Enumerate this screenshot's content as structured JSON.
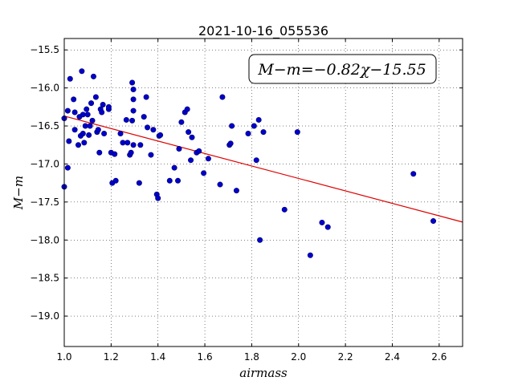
{
  "chart_data": {
    "type": "scatter",
    "title": "2021-10-16_055536",
    "xlabel": "airmass",
    "ylabel": "M−m",
    "xlim": [
      1.0,
      2.7
    ],
    "ylim": [
      -19.4,
      -15.35
    ],
    "y_inverted": true,
    "grid": true,
    "x_ticks": [
      1.0,
      1.2,
      1.4,
      1.6,
      1.8,
      2.0,
      2.2,
      2.4,
      2.6
    ],
    "x_tick_labels": [
      "1.0",
      "1.2",
      "1.4",
      "1.6",
      "1.8",
      "2.0",
      "2.2",
      "2.4",
      "2.6"
    ],
    "y_ticks": [
      -15.5,
      -16.0,
      -16.5,
      -17.0,
      -17.5,
      -18.0,
      -18.5,
      -19.0
    ],
    "y_tick_labels": [
      "−15.5",
      "−16.0",
      "−16.5",
      "−17.0",
      "−17.5",
      "−18.0",
      "−18.5",
      "−19.0"
    ],
    "annotation": "M−m=−0.82χ−15.55",
    "point_color": "#0000cc",
    "line_color": "#dd0000",
    "fit": {
      "slope": -0.82,
      "intercept": -15.55
    },
    "points": [
      [
        1.0,
        -16.4
      ],
      [
        1.0,
        -17.3
      ],
      [
        1.015,
        -17.05
      ],
      [
        1.015,
        -16.3
      ],
      [
        1.02,
        -16.7
      ],
      [
        1.025,
        -15.88
      ],
      [
        1.04,
        -16.15
      ],
      [
        1.045,
        -16.32
      ],
      [
        1.045,
        -16.55
      ],
      [
        1.06,
        -16.75
      ],
      [
        1.065,
        -16.38
      ],
      [
        1.07,
        -16.63
      ],
      [
        1.075,
        -15.78
      ],
      [
        1.08,
        -16.6
      ],
      [
        1.08,
        -16.35
      ],
      [
        1.085,
        -16.72
      ],
      [
        1.09,
        -16.5
      ],
      [
        1.095,
        -16.28
      ],
      [
        1.1,
        -16.35
      ],
      [
        1.105,
        -16.62
      ],
      [
        1.11,
        -16.5
      ],
      [
        1.115,
        -16.2
      ],
      [
        1.12,
        -16.43
      ],
      [
        1.125,
        -15.85
      ],
      [
        1.135,
        -16.12
      ],
      [
        1.14,
        -16.58
      ],
      [
        1.145,
        -16.55
      ],
      [
        1.15,
        -16.85
      ],
      [
        1.155,
        -16.28
      ],
      [
        1.16,
        -16.32
      ],
      [
        1.165,
        -16.22
      ],
      [
        1.17,
        -16.6
      ],
      [
        1.19,
        -16.28
      ],
      [
        1.19,
        -16.25
      ],
      [
        1.2,
        -16.85
      ],
      [
        1.205,
        -17.25
      ],
      [
        1.215,
        -16.87
      ],
      [
        1.22,
        -17.22
      ],
      [
        1.24,
        -16.6
      ],
      [
        1.25,
        -16.72
      ],
      [
        1.265,
        -16.42
      ],
      [
        1.27,
        -16.72
      ],
      [
        1.28,
        -16.88
      ],
      [
        1.285,
        -16.85
      ],
      [
        1.29,
        -15.93
      ],
      [
        1.29,
        -16.43
      ],
      [
        1.295,
        -16.15
      ],
      [
        1.295,
        -16.02
      ],
      [
        1.295,
        -16.3
      ],
      [
        1.295,
        -16.75
      ],
      [
        1.32,
        -17.25
      ],
      [
        1.325,
        -16.75
      ],
      [
        1.34,
        -16.38
      ],
      [
        1.35,
        -16.12
      ],
      [
        1.355,
        -16.52
      ],
      [
        1.37,
        -16.88
      ],
      [
        1.38,
        -16.55
      ],
      [
        1.395,
        -17.4
      ],
      [
        1.4,
        -17.45
      ],
      [
        1.405,
        -16.63
      ],
      [
        1.41,
        -16.62
      ],
      [
        1.45,
        -17.22
      ],
      [
        1.47,
        -17.05
      ],
      [
        1.485,
        -17.22
      ],
      [
        1.49,
        -16.8
      ],
      [
        1.5,
        -16.45
      ],
      [
        1.515,
        -16.32
      ],
      [
        1.525,
        -16.28
      ],
      [
        1.53,
        -16.58
      ],
      [
        1.54,
        -16.95
      ],
      [
        1.545,
        -16.65
      ],
      [
        1.565,
        -16.85
      ],
      [
        1.575,
        -16.83
      ],
      [
        1.595,
        -17.12
      ],
      [
        1.615,
        -16.93
      ],
      [
        1.665,
        -17.27
      ],
      [
        1.675,
        -16.12
      ],
      [
        1.705,
        -16.75
      ],
      [
        1.71,
        -16.73
      ],
      [
        1.715,
        -16.5
      ],
      [
        1.735,
        -17.35
      ],
      [
        1.785,
        -16.6
      ],
      [
        1.81,
        -16.5
      ],
      [
        1.82,
        -16.95
      ],
      [
        1.83,
        -16.42
      ],
      [
        1.835,
        -18.0
      ],
      [
        1.85,
        -16.58
      ],
      [
        1.94,
        -17.6
      ],
      [
        1.995,
        -16.58
      ],
      [
        2.05,
        -18.2
      ],
      [
        2.1,
        -17.77
      ],
      [
        2.125,
        -17.83
      ],
      [
        2.49,
        -17.13
      ],
      [
        2.575,
        -17.75
      ]
    ]
  }
}
